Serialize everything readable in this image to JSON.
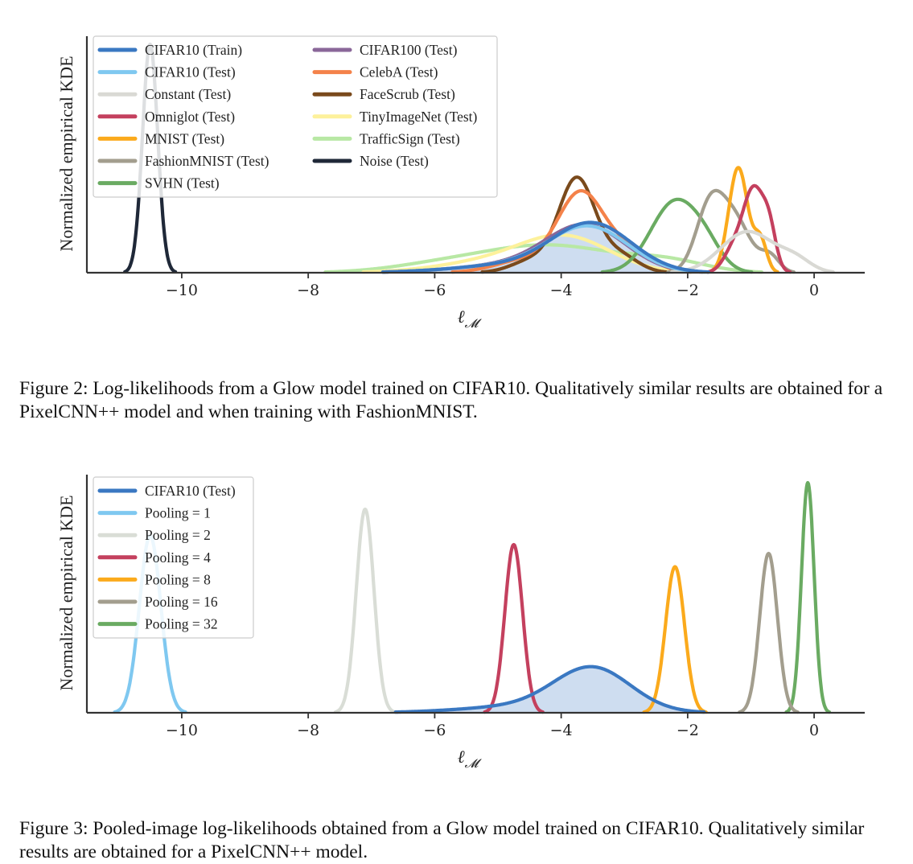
{
  "chart_data": [
    {
      "type": "line",
      "ylabel": "Normalized empirical KDE",
      "xlabel": "ℓ_M",
      "xlim": [
        -11.5,
        0.8
      ],
      "ylim": [
        0,
        1
      ],
      "xticks": [
        -10,
        -8,
        -6,
        -4,
        -2,
        0
      ],
      "grid": false,
      "legend_position": "top-left",
      "legend_columns": 2,
      "series": [
        {
          "name": "CIFAR10 (Train)",
          "color": "#3a78c2",
          "filled": true,
          "components": [
            [
              -3.5,
              0.62,
              1.0
            ],
            [
              -4.6,
              1.0,
              0.18
            ]
          ]
        },
        {
          "name": "CIFAR10 (Test)",
          "color": "#7fc8f0",
          "components": [
            [
              -3.55,
              0.62,
              0.92
            ],
            [
              -4.6,
              1.0,
              0.18
            ]
          ]
        },
        {
          "name": "Constant (Test)",
          "color": "#d9d9d4",
          "components": [
            [
              -1.05,
              0.42,
              0.9
            ],
            [
              -0.3,
              0.25,
              0.25
            ]
          ]
        },
        {
          "name": "Omniglot (Test)",
          "color": "#c4405e",
          "components": [
            [
              -0.95,
              0.18,
              1.85
            ],
            [
              -0.7,
              0.1,
              0.6
            ],
            [
              -1.3,
              0.15,
              0.4
            ]
          ]
        },
        {
          "name": "MNIST (Test)",
          "color": "#fbaa1c",
          "components": [
            [
              -1.2,
              0.15,
              2.3
            ],
            [
              -0.85,
              0.1,
              0.7
            ]
          ]
        },
        {
          "name": "FashionMNIST (Test)",
          "color": "#a39e8e",
          "components": [
            [
              -1.65,
              0.22,
              1.4
            ],
            [
              -1.25,
              0.25,
              1.1
            ],
            [
              -0.7,
              0.15,
              0.35
            ]
          ]
        },
        {
          "name": "SVHN (Test)",
          "color": "#6aab62",
          "components": [
            [
              -2.2,
              0.38,
              1.55
            ],
            [
              -1.7,
              0.25,
              0.35
            ]
          ]
        },
        {
          "name": "CIFAR100 (Test)",
          "color": "#8a6799",
          "components": [
            [
              -3.6,
              0.62,
              0.95
            ],
            [
              -4.6,
              1.0,
              0.18
            ]
          ]
        },
        {
          "name": "CelebA (Test)",
          "color": "#f4824a",
          "components": [
            [
              -3.7,
              0.35,
              1.6
            ],
            [
              -3.0,
              0.4,
              0.5
            ],
            [
              -4.5,
              0.5,
              0.3
            ]
          ]
        },
        {
          "name": "FaceScrub (Test)",
          "color": "#7a4a1c",
          "components": [
            [
              -3.75,
              0.28,
              2.0
            ],
            [
              -3.1,
              0.3,
              0.4
            ],
            [
              -4.4,
              0.35,
              0.3
            ]
          ]
        },
        {
          "name": "TinyImageNet (Test)",
          "color": "#fdf19b",
          "components": [
            [
              -3.9,
              0.7,
              0.7
            ],
            [
              -5.0,
              0.9,
              0.25
            ]
          ]
        },
        {
          "name": "TrafficSign (Test)",
          "color": "#b8e8a4",
          "components": [
            [
              -4.2,
              1.1,
              0.6
            ],
            [
              -6.0,
              0.8,
              0.12
            ],
            [
              -2.3,
              0.6,
              0.2
            ]
          ]
        },
        {
          "name": "Noise (Test)",
          "color": "#1f2838",
          "components": [
            [
              -10.5,
              0.12,
              5.0
            ]
          ]
        }
      ]
    },
    {
      "type": "line",
      "ylabel": "Normalized empirical KDE",
      "xlabel": "ℓ_M",
      "xlim": [
        -11.5,
        0.8
      ],
      "ylim": [
        0,
        1
      ],
      "xticks": [
        -10,
        -8,
        -6,
        -4,
        -2,
        0
      ],
      "grid": false,
      "legend_position": "top-left",
      "legend_columns": 1,
      "series": [
        {
          "name": "CIFAR10 (Test)",
          "color": "#3a78c2",
          "filled": true,
          "components": [
            [
              -3.5,
              0.6,
              0.95
            ],
            [
              -4.5,
              1.0,
              0.15
            ]
          ]
        },
        {
          "name": "Pooling = 1",
          "color": "#7fc8f0",
          "components": [
            [
              -10.5,
              0.17,
              4.0
            ]
          ]
        },
        {
          "name": "Pooling = 2",
          "color": "#d9ddd6",
          "components": [
            [
              -7.1,
              0.14,
              4.6
            ]
          ]
        },
        {
          "name": "Pooling = 4",
          "color": "#c4405e",
          "components": [
            [
              -4.75,
              0.14,
              3.8
            ]
          ]
        },
        {
          "name": "Pooling = 8",
          "color": "#fbaa1c",
          "components": [
            [
              -2.2,
              0.15,
              3.3
            ]
          ]
        },
        {
          "name": "Pooling = 16",
          "color": "#a39e8e",
          "components": [
            [
              -0.72,
              0.14,
              3.6
            ]
          ]
        },
        {
          "name": "Pooling = 32",
          "color": "#6aab62",
          "components": [
            [
              -0.1,
              0.1,
              5.2
            ]
          ]
        }
      ]
    }
  ],
  "captions": {
    "fig2": "Figure 2: Log-likelihoods from a Glow model trained on CIFAR10. Qualitatively similar results are obtained for a PixelCNN++ model and when training with FashionMNIST.",
    "fig3": "Figure 3: Pooled-image log-likelihoods obtained from a Glow model trained on CIFAR10. Qualitatively similar results are obtained for a PixelCNN++ model."
  },
  "tick_labels": [
    "−10",
    "−8",
    "−6",
    "−4",
    "−2",
    "0"
  ]
}
